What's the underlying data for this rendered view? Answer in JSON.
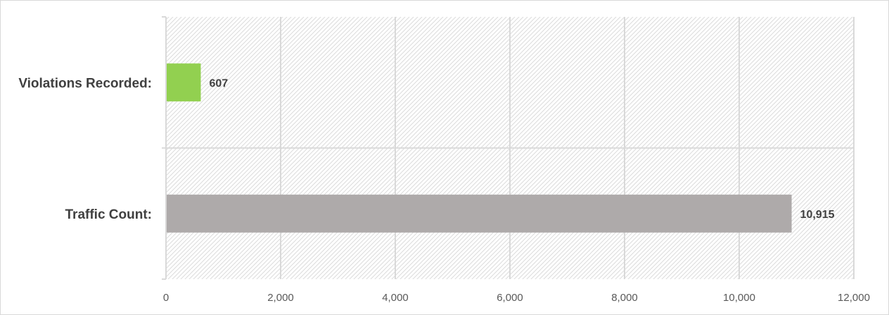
{
  "chart_data": {
    "type": "bar",
    "orientation": "horizontal",
    "categories": [
      "Violations Recorded:",
      "Traffic Count:"
    ],
    "values": [
      607,
      10915
    ],
    "data_labels": [
      "607",
      "10,915"
    ],
    "colors": [
      "#92d050",
      "#aeaaaa"
    ],
    "xlim": [
      0,
      12000
    ],
    "x_ticks": [
      0,
      2000,
      4000,
      6000,
      8000,
      10000,
      12000
    ],
    "x_tick_labels": [
      "0",
      "2,000",
      "4,000",
      "6,000",
      "8,000",
      "10,000",
      "12,000"
    ],
    "grid": true,
    "background": "hatched",
    "legend": "none"
  }
}
